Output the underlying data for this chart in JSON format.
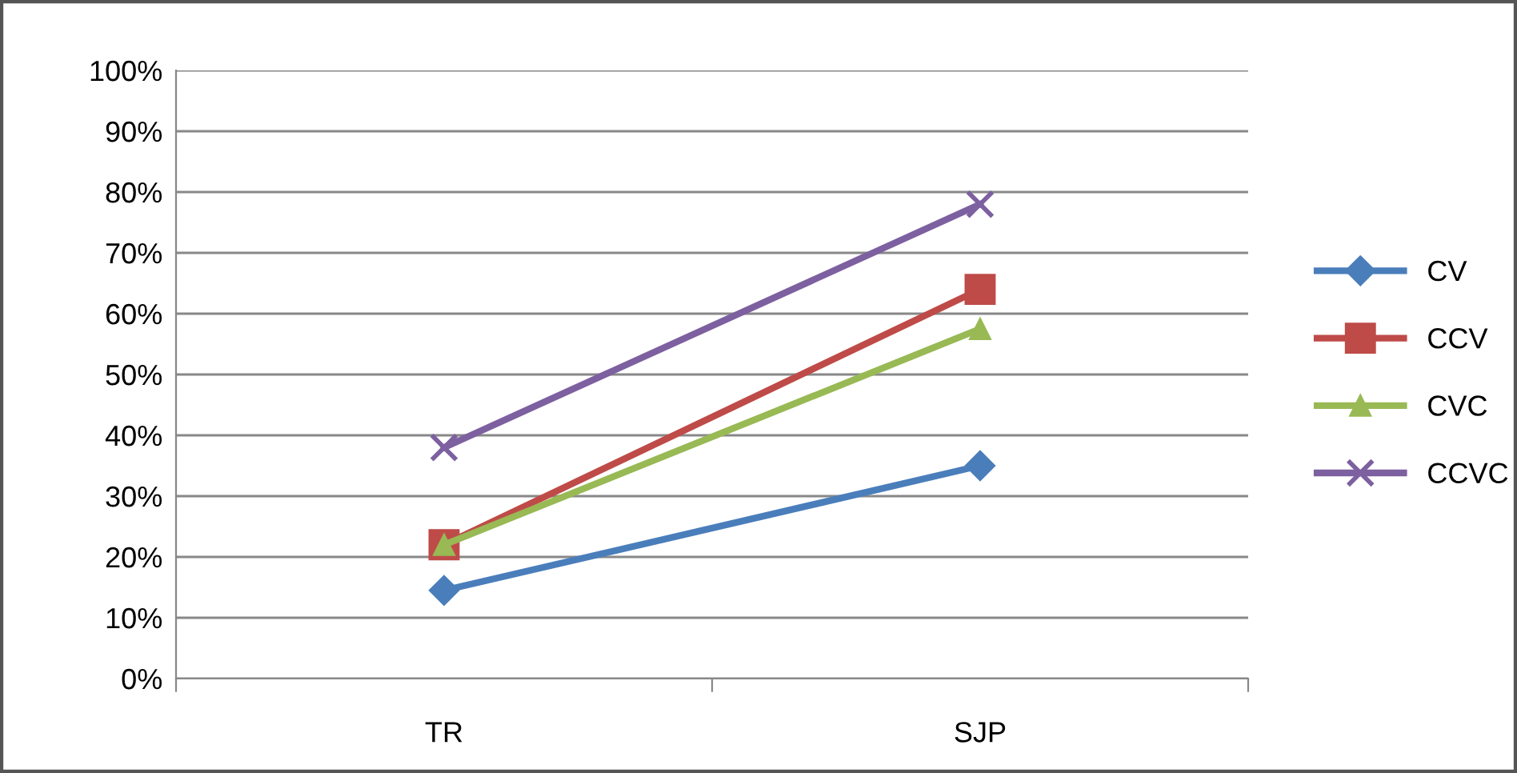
{
  "chart_data": {
    "type": "line",
    "categories": [
      "TR",
      "SJP"
    ],
    "series": [
      {
        "name": "CV",
        "color": "#4a7ebb",
        "marker": "diamond",
        "values": [
          14.5,
          35
        ]
      },
      {
        "name": "CCV",
        "color": "#be4b48",
        "marker": "square",
        "values": [
          22,
          64
        ]
      },
      {
        "name": "CVC",
        "color": "#98b954",
        "marker": "triangle",
        "values": [
          22,
          57.5
        ]
      },
      {
        "name": "CCVC",
        "color": "#7d60a0",
        "marker": "cross",
        "values": [
          38,
          78
        ]
      }
    ],
    "ylim": [
      0,
      100
    ],
    "yticks": [
      {
        "value": 0,
        "label": "0%"
      },
      {
        "value": 10,
        "label": "10%"
      },
      {
        "value": 20,
        "label": "20%"
      },
      {
        "value": 30,
        "label": "30%"
      },
      {
        "value": 40,
        "label": "40%"
      },
      {
        "value": 50,
        "label": "50%"
      },
      {
        "value": 60,
        "label": "60%"
      },
      {
        "value": 70,
        "label": "70%"
      },
      {
        "value": 80,
        "label": "80%"
      },
      {
        "value": 90,
        "label": "90%"
      },
      {
        "value": 100,
        "label": "100%"
      }
    ],
    "grid": "y",
    "legend": "right",
    "line_style": "solid"
  }
}
